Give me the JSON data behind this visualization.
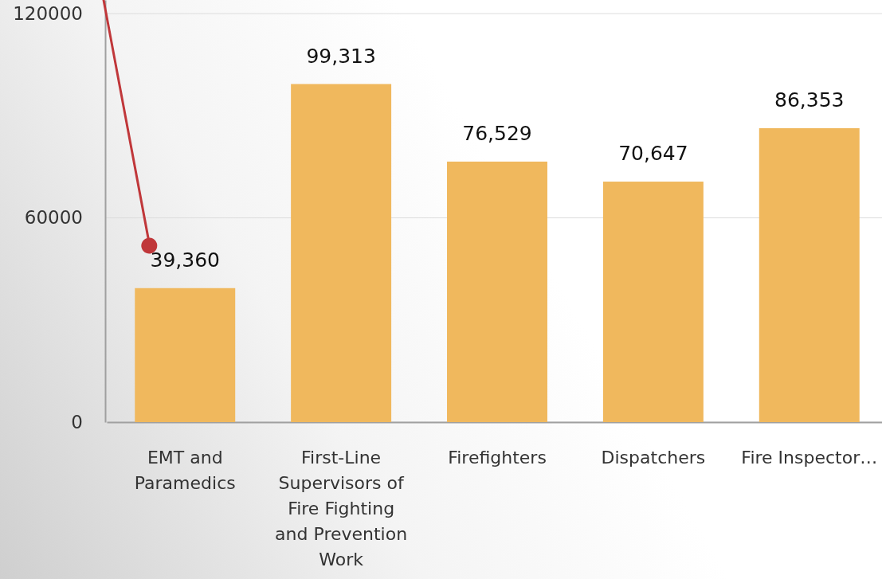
{
  "chart_data": {
    "type": "bar",
    "categories": [
      "EMT and Paramedics",
      "First-Line Supervisors of Fire Fighting and Prevention Work",
      "Firefighters",
      "Dispatchers",
      "Fire Inspector…"
    ],
    "values": [
      39360,
      99313,
      76529,
      70647,
      86353
    ],
    "value_labels": [
      "39,360",
      "99,313",
      "76,529",
      "70,647",
      "86,353"
    ],
    "color": "#f0b85d",
    "ylim": [
      0,
      124000
    ],
    "yticks": [
      0,
      60000,
      120000
    ],
    "grid": "y"
  }
}
